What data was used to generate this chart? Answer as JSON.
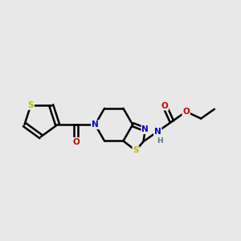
{
  "background_color": "#e8e8e8",
  "atom_colors": {
    "C": "#000000",
    "N": "#0000cc",
    "O": "#cc0000",
    "S": "#bbbb00",
    "H": "#607080"
  },
  "bond_color": "#000000",
  "bond_width": 1.8,
  "figsize": [
    3.0,
    3.0
  ],
  "dpi": 100,
  "xlim": [
    0.0,
    10.0
  ],
  "ylim": [
    2.5,
    8.5
  ]
}
